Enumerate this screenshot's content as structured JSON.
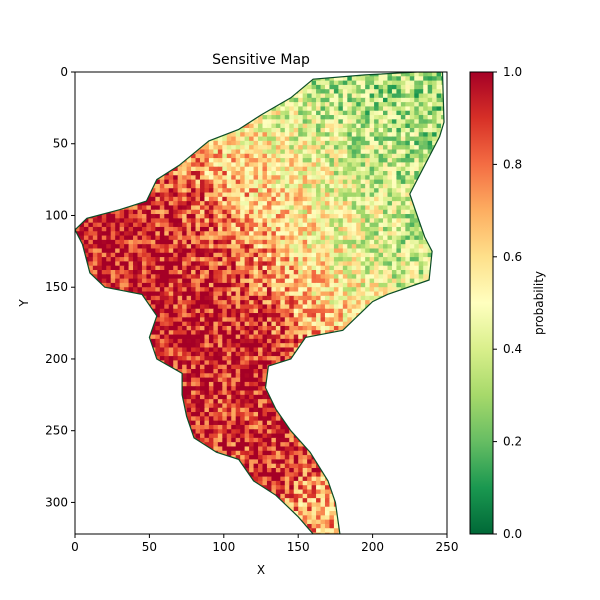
{
  "chart_data": {
    "type": "heatmap",
    "title": "Sensitive Map",
    "xlabel": "X",
    "ylabel": "Y",
    "xlim": [
      0,
      250
    ],
    "ylim": [
      322,
      0
    ],
    "x_ticks": [
      0,
      50,
      100,
      150,
      200,
      250
    ],
    "y_ticks": [
      0,
      50,
      100,
      150,
      200,
      250,
      300
    ],
    "grid": false,
    "colormap": "RdYlGn_r",
    "colorbar": {
      "label": "probability",
      "min": 0.0,
      "max": 1.0,
      "ticks": [
        "0.0",
        "0.2",
        "0.4",
        "0.6",
        "0.8",
        "1.0"
      ],
      "stops": [
        {
          "value": 0.0,
          "color": "#006837"
        },
        {
          "value": 0.1,
          "color": "#1a9850"
        },
        {
          "value": 0.2,
          "color": "#66bd63"
        },
        {
          "value": 0.3,
          "color": "#a6d96a"
        },
        {
          "value": 0.4,
          "color": "#d9ef8b"
        },
        {
          "value": 0.5,
          "color": "#ffffbf"
        },
        {
          "value": 0.6,
          "color": "#fee08b"
        },
        {
          "value": 0.7,
          "color": "#fdae61"
        },
        {
          "value": 0.8,
          "color": "#f46d43"
        },
        {
          "value": 0.9,
          "color": "#d73027"
        },
        {
          "value": 1.0,
          "color": "#a50026"
        }
      ]
    },
    "region_outline": [
      [
        230,
        0
      ],
      [
        247,
        0
      ],
      [
        248,
        35
      ],
      [
        245,
        45
      ],
      [
        235,
        65
      ],
      [
        225,
        85
      ],
      [
        230,
        100
      ],
      [
        235,
        115
      ],
      [
        240,
        125
      ],
      [
        238,
        145
      ],
      [
        210,
        155
      ],
      [
        200,
        160
      ],
      [
        190,
        170
      ],
      [
        180,
        180
      ],
      [
        155,
        185
      ],
      [
        145,
        200
      ],
      [
        130,
        205
      ],
      [
        128,
        220
      ],
      [
        135,
        235
      ],
      [
        145,
        250
      ],
      [
        158,
        265
      ],
      [
        170,
        285
      ],
      [
        175,
        300
      ],
      [
        178,
        322
      ],
      [
        160,
        322
      ],
      [
        150,
        310
      ],
      [
        135,
        295
      ],
      [
        120,
        285
      ],
      [
        110,
        270
      ],
      [
        95,
        265
      ],
      [
        80,
        255
      ],
      [
        75,
        240
      ],
      [
        72,
        225
      ],
      [
        72,
        210
      ],
      [
        55,
        200
      ],
      [
        50,
        185
      ],
      [
        55,
        170
      ],
      [
        45,
        155
      ],
      [
        20,
        150
      ],
      [
        10,
        140
      ],
      [
        5,
        120
      ],
      [
        0,
        110
      ],
      [
        8,
        102
      ],
      [
        30,
        96
      ],
      [
        48,
        90
      ],
      [
        55,
        75
      ],
      [
        70,
        65
      ],
      [
        90,
        48
      ],
      [
        110,
        40
      ],
      [
        125,
        30
      ],
      [
        145,
        18
      ],
      [
        160,
        5
      ],
      [
        195,
        2
      ]
    ],
    "zones": [
      {
        "description": "southwest core",
        "cx": 75,
        "cy": 140,
        "r": 40,
        "value": 0.95
      },
      {
        "description": "central core",
        "cx": 105,
        "cy": 190,
        "r": 35,
        "value": 0.95
      },
      {
        "description": "southern tail",
        "cx": 120,
        "cy": 250,
        "r": 30,
        "value": 0.9
      },
      {
        "description": "tail tip",
        "cx": 165,
        "cy": 300,
        "r": 15,
        "value": 0.7
      },
      {
        "description": "north-east arm",
        "cx": 200,
        "cy": 30,
        "r": 35,
        "value": 0.3
      },
      {
        "description": "central north",
        "cx": 150,
        "cy": 90,
        "r": 40,
        "value": 0.55
      },
      {
        "description": "east flank",
        "cx": 200,
        "cy": 120,
        "r": 30,
        "value": 0.35
      },
      {
        "description": "east central",
        "cx": 165,
        "cy": 150,
        "r": 25,
        "value": 0.6
      }
    ]
  }
}
